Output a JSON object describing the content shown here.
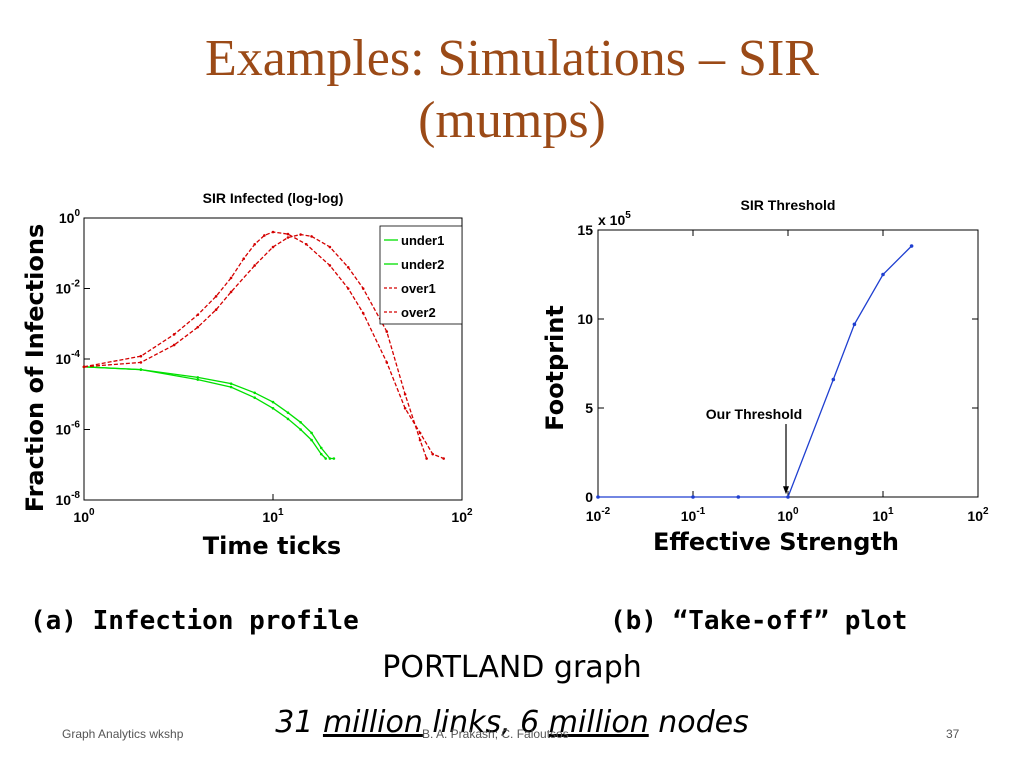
{
  "slide": {
    "title_line1": "Examples: Simulations – SIR",
    "title_line2": "(mumps)",
    "caption_a": "(a) Infection profile",
    "caption_b": "(b) “Take-off” plot",
    "graph_name": "PORTLAND graph",
    "graph_size": {
      "part1": "31 ",
      "part2": "million",
      "part3": " links, 6 ",
      "part4": "million",
      "part5": " nodes"
    },
    "footer_left": "Graph Analytics wkshp",
    "footer_center": "B. A. Prakash; C. Faloutsos",
    "page_number": "37"
  },
  "colors": {
    "title": "#9b4a17",
    "under": "#00e000",
    "over": "#d40000",
    "threshold_line": "#1f3fd0"
  },
  "chart_data": [
    {
      "type": "line",
      "title": "SIR Infected (log-log)",
      "xlabel": "Time ticks",
      "ylabel": "Fraction of Infections",
      "x_scale": "log",
      "y_scale": "log",
      "xlim": [
        1,
        100
      ],
      "ylim": [
        1e-08,
        1
      ],
      "x_ticks": [
        {
          "value": 1,
          "base": "10",
          "exp": "0"
        },
        {
          "value": 10,
          "base": "10",
          "exp": "1"
        },
        {
          "value": 100,
          "base": "10",
          "exp": "2"
        }
      ],
      "y_ticks": [
        {
          "value": 1,
          "base": "10",
          "exp": "0"
        },
        {
          "value": 0.01,
          "base": "10",
          "exp": "-2"
        },
        {
          "value": 0.0001,
          "base": "10",
          "exp": "-4"
        },
        {
          "value": 1e-06,
          "base": "10",
          "exp": "-6"
        },
        {
          "value": 1e-08,
          "base": "10",
          "exp": "-8"
        }
      ],
      "legend_position": "top-right",
      "series": [
        {
          "name": "under1",
          "style": "solid",
          "color": "#00e000",
          "x": [
            1,
            2,
            4,
            6,
            8,
            10,
            12,
            14,
            16,
            18,
            20,
            21
          ],
          "y": [
            6e-05,
            5e-05,
            3e-05,
            2e-05,
            1.1e-05,
            6e-06,
            3e-06,
            1.6e-06,
            8e-07,
            3e-07,
            1.5e-07,
            1.5e-07
          ]
        },
        {
          "name": "under2",
          "style": "solid",
          "color": "#00e000",
          "x": [
            1,
            2,
            4,
            6,
            8,
            10,
            12,
            14,
            16,
            18,
            19
          ],
          "y": [
            6e-05,
            5e-05,
            2.6e-05,
            1.6e-05,
            8e-06,
            4e-06,
            2e-06,
            1e-06,
            5e-07,
            2e-07,
            1.5e-07
          ]
        },
        {
          "name": "over1",
          "style": "dashed",
          "color": "#d40000",
          "x": [
            1,
            2,
            3,
            4,
            5,
            6,
            7,
            8,
            9,
            10,
            12,
            15,
            20,
            25,
            30,
            40,
            50,
            60,
            70,
            80
          ],
          "y": [
            6e-05,
            0.00012,
            0.0005,
            0.0018,
            0.006,
            0.02,
            0.07,
            0.18,
            0.32,
            0.4,
            0.35,
            0.18,
            0.045,
            0.01,
            0.002,
            8e-05,
            4e-06,
            8e-07,
            2e-07,
            1.5e-07
          ]
        },
        {
          "name": "over2",
          "style": "dashed",
          "color": "#d40000",
          "x": [
            1,
            2,
            3,
            4,
            5,
            6,
            8,
            10,
            12,
            14,
            16,
            20,
            25,
            30,
            40,
            50,
            60,
            65
          ],
          "y": [
            6e-05,
            8e-05,
            0.00025,
            0.0008,
            0.0025,
            0.008,
            0.045,
            0.15,
            0.28,
            0.34,
            0.3,
            0.15,
            0.04,
            0.01,
            0.0006,
            1e-05,
            5e-07,
            1.5e-07
          ]
        }
      ]
    },
    {
      "type": "line",
      "title": "SIR Threshold",
      "xlabel": "Effective Strength",
      "ylabel": "Footprint",
      "x_scale": "log",
      "xlim": [
        0.01,
        100
      ],
      "ylim": [
        0,
        15
      ],
      "multiplier_label": "x 10",
      "multiplier_exp": "5",
      "x_ticks": [
        {
          "value": 0.01,
          "base": "10",
          "exp": "-2"
        },
        {
          "value": 0.1,
          "base": "10",
          "exp": "-1"
        },
        {
          "value": 1,
          "base": "10",
          "exp": "0"
        },
        {
          "value": 10,
          "base": "10",
          "exp": "1"
        },
        {
          "value": 100,
          "base": "10",
          "exp": "2"
        }
      ],
      "y_ticks": [
        {
          "value": 0,
          "label": "0"
        },
        {
          "value": 5,
          "label": "5"
        },
        {
          "value": 10,
          "label": "10"
        },
        {
          "value": 15,
          "label": "15"
        }
      ],
      "annotation": {
        "text": "Our Threshold",
        "x": 1,
        "y_from": 4.1,
        "y_to": 0.1
      },
      "series": [
        {
          "name": "",
          "color": "#1f3fd0",
          "x": [
            0.01,
            0.1,
            0.3,
            1,
            3,
            5,
            10,
            20
          ],
          "y": [
            0,
            0,
            0,
            0,
            6.6,
            9.7,
            12.5,
            14.1
          ]
        }
      ]
    }
  ]
}
